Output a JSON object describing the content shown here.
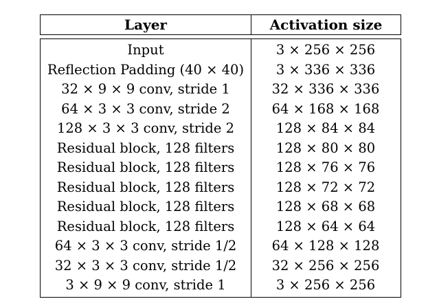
{
  "table": {
    "headers": {
      "layer": "Layer",
      "activation": "Activation size"
    },
    "rows": [
      {
        "layer": "Input",
        "activation": "3 × 256 × 256"
      },
      {
        "layer": "Reflection Padding (40 × 40)",
        "activation": "3 × 336 × 336"
      },
      {
        "layer": "32 × 9 × 9 conv, stride 1",
        "activation": "32 × 336 × 336"
      },
      {
        "layer": "64 × 3 × 3 conv, stride 2",
        "activation": "64 × 168 × 168"
      },
      {
        "layer": "128 × 3 × 3 conv, stride 2",
        "activation": "128 × 84 × 84"
      },
      {
        "layer": "Residual block, 128 filters",
        "activation": "128 × 80 × 80"
      },
      {
        "layer": "Residual block, 128 filters",
        "activation": "128 × 76 × 76"
      },
      {
        "layer": "Residual block, 128 filters",
        "activation": "128 × 72 × 72"
      },
      {
        "layer": "Residual block, 128 filters",
        "activation": "128 × 68 × 68"
      },
      {
        "layer": "Residual block, 128 filters",
        "activation": "128 × 64 × 64"
      },
      {
        "layer": "64 × 3 × 3 conv, stride 1/2",
        "activation": "64 × 128 × 128"
      },
      {
        "layer": "32 × 3 × 3 conv, stride 1/2",
        "activation": "32 × 256 × 256"
      },
      {
        "layer": "3 × 9 × 9 conv, stride 1",
        "activation": "3 × 256 × 256"
      }
    ]
  }
}
